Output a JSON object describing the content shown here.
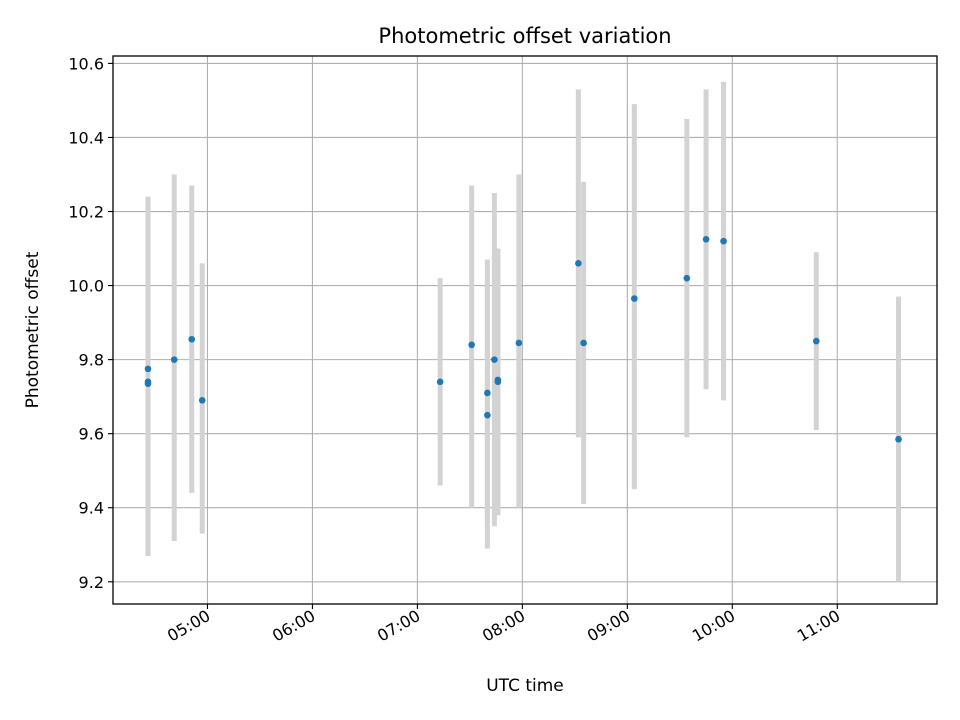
{
  "chart_data": {
    "type": "scatter",
    "title": "Photometric offset variation",
    "xlabel": "UTC time",
    "ylabel": "Photometric offset",
    "x_ticks": [
      "05:00",
      "06:00",
      "07:00",
      "08:00",
      "09:00",
      "10:00",
      "11:00"
    ],
    "y_ticks": [
      "9.2",
      "9.4",
      "9.6",
      "9.8",
      "10.0",
      "10.2",
      "10.4",
      "10.6"
    ],
    "xlim": [
      "04:06",
      "11:57"
    ],
    "ylim": [
      9.14,
      10.62
    ],
    "grid": true,
    "colors": {
      "point": "#1f77b4",
      "errorbar": "#d3d3d3",
      "grid": "#b0b0b0"
    },
    "points": [
      {
        "x": "04:26",
        "y": 9.775,
        "ylow": 9.27,
        "yhigh": 10.24
      },
      {
        "x": "04:26",
        "y": 9.74,
        "ylow": 9.27,
        "yhigh": 10.24
      },
      {
        "x": "04:26",
        "y": 9.735,
        "ylow": 9.27,
        "yhigh": 10.24
      },
      {
        "x": "04:41",
        "y": 9.8,
        "ylow": 9.31,
        "yhigh": 10.3
      },
      {
        "x": "04:51",
        "y": 9.855,
        "ylow": 9.44,
        "yhigh": 10.27
      },
      {
        "x": "04:57",
        "y": 9.69,
        "ylow": 9.33,
        "yhigh": 10.06
      },
      {
        "x": "07:13",
        "y": 9.74,
        "ylow": 9.46,
        "yhigh": 10.02
      },
      {
        "x": "07:31",
        "y": 9.84,
        "ylow": 9.4,
        "yhigh": 10.27
      },
      {
        "x": "07:40",
        "y": 9.65,
        "ylow": 9.29,
        "yhigh": 10.07
      },
      {
        "x": "07:40",
        "y": 9.71,
        "ylow": 9.35,
        "yhigh": 10.01
      },
      {
        "x": "07:44",
        "y": 9.8,
        "ylow": 9.35,
        "yhigh": 10.25
      },
      {
        "x": "07:46",
        "y": 9.745,
        "ylow": 9.38,
        "yhigh": 10.1
      },
      {
        "x": "07:46",
        "y": 9.74,
        "ylow": 9.38,
        "yhigh": 10.1
      },
      {
        "x": "07:58",
        "y": 9.845,
        "ylow": 9.4,
        "yhigh": 10.3
      },
      {
        "x": "08:32",
        "y": 10.06,
        "ylow": 9.59,
        "yhigh": 10.53
      },
      {
        "x": "08:35",
        "y": 9.845,
        "ylow": 9.41,
        "yhigh": 10.28
      },
      {
        "x": "09:04",
        "y": 9.965,
        "ylow": 9.45,
        "yhigh": 10.49
      },
      {
        "x": "09:34",
        "y": 10.02,
        "ylow": 9.59,
        "yhigh": 10.45
      },
      {
        "x": "09:45",
        "y": 10.125,
        "ylow": 9.72,
        "yhigh": 10.53
      },
      {
        "x": "09:55",
        "y": 10.12,
        "ylow": 9.69,
        "yhigh": 10.55
      },
      {
        "x": "10:48",
        "y": 9.85,
        "ylow": 9.61,
        "yhigh": 10.09
      },
      {
        "x": "11:35",
        "y": 9.585,
        "ylow": 9.2,
        "yhigh": 9.97
      }
    ]
  }
}
